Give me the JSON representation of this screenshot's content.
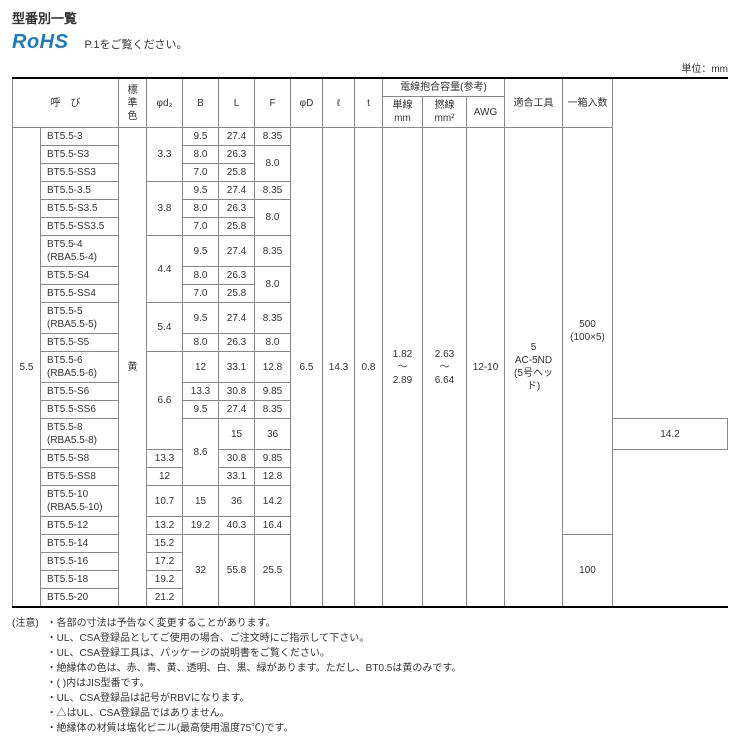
{
  "title": "型番別一覧",
  "rohs": "RoHS",
  "rohs_note": "P.1をご覧ください。",
  "unit": "単位：mm",
  "headers": {
    "name": "呼　び",
    "stdcolor": "標準色",
    "d2": "φd₂",
    "B": "B",
    "L": "L",
    "F": "F",
    "D": "φD",
    "l": "ℓ",
    "t": "t",
    "wire_cap": "電線抱合容量(参考)",
    "single": "単線mm",
    "strand": "撚線mm²",
    "awg": "AWG",
    "tool": "適合工具",
    "pack": "一箱入数"
  },
  "size": "5.5",
  "color": "黄",
  "D": "6.5",
  "l": "14.3",
  "t": "0.8",
  "single": "1.82\n〜\n2.89",
  "strand": "2.63\n〜\n6.64",
  "awg": "12-10",
  "tool": "5\nAC-5ND\n(5号ヘッド)",
  "pack_a": "500\n(100×5)",
  "pack_b": "100",
  "rows": [
    {
      "name": "BT5.5-3",
      "d2": "3.3",
      "d2rs": 3,
      "B": "9.5",
      "L": "27.4",
      "F": "8.35"
    },
    {
      "name": "BT5.5-S3",
      "B": "8.0",
      "L": "26.3",
      "F": "8.0",
      "Frs": 2
    },
    {
      "name": "BT5.5-SS3",
      "B": "7.0",
      "L": "25.8"
    },
    {
      "name": "BT5.5-3.5",
      "d2": "3.8",
      "d2rs": 3,
      "B": "9.5",
      "L": "27.4",
      "F": "8.35"
    },
    {
      "name": "BT5.5-S3.5",
      "B": "8.0",
      "L": "26.3",
      "F": "8.0",
      "Frs": 2
    },
    {
      "name": "BT5.5-SS3.5",
      "B": "7.0",
      "L": "25.8"
    },
    {
      "name": "BT5.5-4\n(RBA5.5-4)",
      "d2": "4.4",
      "d2rs": 3,
      "B": "9.5",
      "L": "27.4",
      "F": "8.35"
    },
    {
      "name": "BT5.5-S4",
      "B": "8.0",
      "L": "26.3",
      "F": "8.0",
      "Frs": 2
    },
    {
      "name": "BT5.5-SS4",
      "B": "7.0",
      "L": "25.8"
    },
    {
      "name": "BT5.5-5\n(RBA5.5-5)",
      "d2": "5.4",
      "d2rs": 2,
      "B": "9.5",
      "L": "27.4",
      "F": "8.35"
    },
    {
      "name": "BT5.5-S5",
      "B": "8.0",
      "L": "26.3",
      "F": "8.0"
    },
    {
      "name": "BT5.5-6\n(RBA5.5-6)",
      "d2": "6.6",
      "d2rs": 4,
      "B": "12",
      "L": "33.1",
      "F": "12.8"
    },
    {
      "name": "BT5.5-S6",
      "B": "13.3",
      "L": "30.8",
      "F": "9.85"
    },
    {
      "name": "BT5.5-SS6",
      "B": "9.5",
      "L": "27.4",
      "F": "8.35"
    },
    {
      "name": "BT5.5-8\n(RBA5.5-8)",
      "d2": "8.6",
      "d2rs": 3,
      "B": "15",
      "L": "36",
      "F": "14.2"
    },
    {
      "name": "BT5.5-S8",
      "B": "13.3",
      "L": "30.8",
      "F": "9.85"
    },
    {
      "name": "BT5.5-SS8",
      "B": "12",
      "L": "33.1",
      "F": "12.8"
    },
    {
      "name": "BT5.5-10\n(RBA5.5-10)",
      "d2": "10.7",
      "B": "15",
      "L": "36",
      "F": "14.2"
    },
    {
      "name": "BT5.5-12",
      "d2": "13.2",
      "B": "19.2",
      "L": "40.3",
      "F": "16.4"
    },
    {
      "name": "BT5.5-14",
      "d2": "15.2",
      "B": "32",
      "Brs": 4,
      "L": "55.8",
      "Lrs": 4,
      "F": "25.5",
      "Frs": 4
    },
    {
      "name": "BT5.5-16",
      "d2": "17.2"
    },
    {
      "name": "BT5.5-18",
      "d2": "19.2"
    },
    {
      "name": "BT5.5-20",
      "d2": "21.2"
    }
  ],
  "notes_label": "(注意)",
  "notes": [
    "・各部の寸法は予告なく変更することがあります。",
    "・UL、CSA登録品としてご使用の場合、ご注文時にご指示して下さい。",
    "・UL、CSA登録工具は、パッケージの説明書をご覧ください。",
    "・絶縁体の色は、赤、青、黄、透明、白、黒、緑があります。ただし、BT0.5は黄のみです。",
    "・( )内はJIS型番です。",
    "・UL、CSA登録品は記号がRBVになります。",
    "・△はUL、CSA登録品ではありません。",
    "・絶縁体の材質は塩化ビニル(最高使用温度75℃)です。"
  ]
}
